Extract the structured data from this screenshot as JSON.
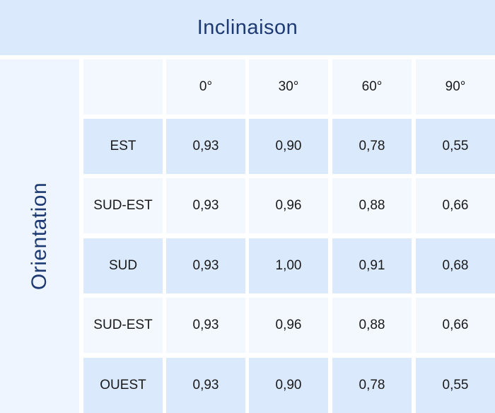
{
  "header": {
    "title": "Inclinaison"
  },
  "table": {
    "side_title": "Orientation",
    "columns": [
      "0°",
      "30°",
      "60°",
      "90°"
    ],
    "rows": [
      {
        "label": "EST",
        "values": [
          "0,93",
          "0,90",
          "0,78",
          "0,55"
        ]
      },
      {
        "label": "SUD-EST",
        "values": [
          "0,93",
          "0,96",
          "0,88",
          "0,66"
        ]
      },
      {
        "label": "SUD",
        "values": [
          "0,93",
          "1,00",
          "0,91",
          "0,68"
        ]
      },
      {
        "label": "SUD-EST",
        "values": [
          "0,93",
          "0,96",
          "0,88",
          "0,66"
        ]
      },
      {
        "label": "OUEST",
        "values": [
          "0,93",
          "0,90",
          "0,78",
          "0,55"
        ]
      }
    ]
  }
}
